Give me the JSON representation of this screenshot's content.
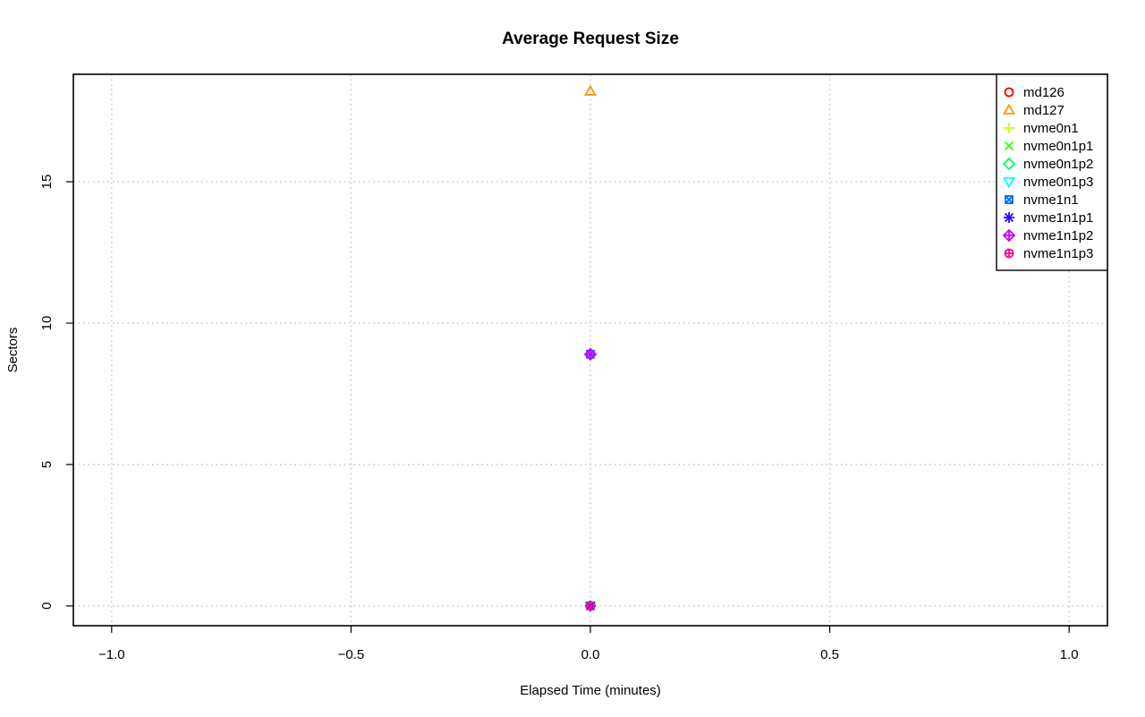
{
  "chart_data": {
    "type": "scatter",
    "title": "Average Request Size",
    "xlabel": "Elapsed Time (minutes)",
    "ylabel": "Sectors",
    "xlim": [
      -1.08,
      1.08
    ],
    "ylim": [
      -0.7,
      18.8
    ],
    "x_ticks": [
      -1.0,
      -0.5,
      0.0,
      0.5,
      1.0
    ],
    "x_tick_labels": [
      "−1.0",
      "−0.5",
      "0.0",
      "0.5",
      "1.0"
    ],
    "y_ticks": [
      0,
      5,
      10,
      15
    ],
    "y_tick_labels": [
      "0",
      "5",
      "10",
      "15"
    ],
    "grid": true,
    "legend_position": "top-right",
    "series": [
      {
        "name": "md126",
        "color": "#ff0000",
        "marker": "circle",
        "points": [
          [
            0.0,
            0.0
          ]
        ]
      },
      {
        "name": "md127",
        "color": "#ff9900",
        "marker": "triangle-up",
        "points": [
          [
            0.0,
            18.2
          ]
        ]
      },
      {
        "name": "nvme0n1",
        "color": "#ccff00",
        "marker": "plus",
        "points": [
          [
            0.0,
            8.9
          ]
        ]
      },
      {
        "name": "nvme0n1p1",
        "color": "#33ff00",
        "marker": "cross",
        "points": [
          [
            0.0,
            0.0
          ]
        ]
      },
      {
        "name": "nvme0n1p2",
        "color": "#00ff66",
        "marker": "diamond",
        "points": [
          [
            0.0,
            8.9
          ]
        ]
      },
      {
        "name": "nvme0n1p3",
        "color": "#00ffff",
        "marker": "triangle-down",
        "points": [
          [
            0.0,
            0.0
          ]
        ]
      },
      {
        "name": "nvme1n1",
        "color": "#0066ff",
        "marker": "square-cross",
        "points": [
          [
            0.0,
            8.9
          ]
        ]
      },
      {
        "name": "nvme1n1p1",
        "color": "#3300ff",
        "marker": "asterisk",
        "points": [
          [
            0.0,
            0.0
          ]
        ]
      },
      {
        "name": "nvme1n1p2",
        "color": "#cc00ff",
        "marker": "diamond-plus",
        "points": [
          [
            0.0,
            8.9
          ]
        ]
      },
      {
        "name": "nvme1n1p3",
        "color": "#ff0099",
        "marker": "circle-plus",
        "points": [
          [
            0.0,
            0.0
          ]
        ]
      }
    ]
  }
}
